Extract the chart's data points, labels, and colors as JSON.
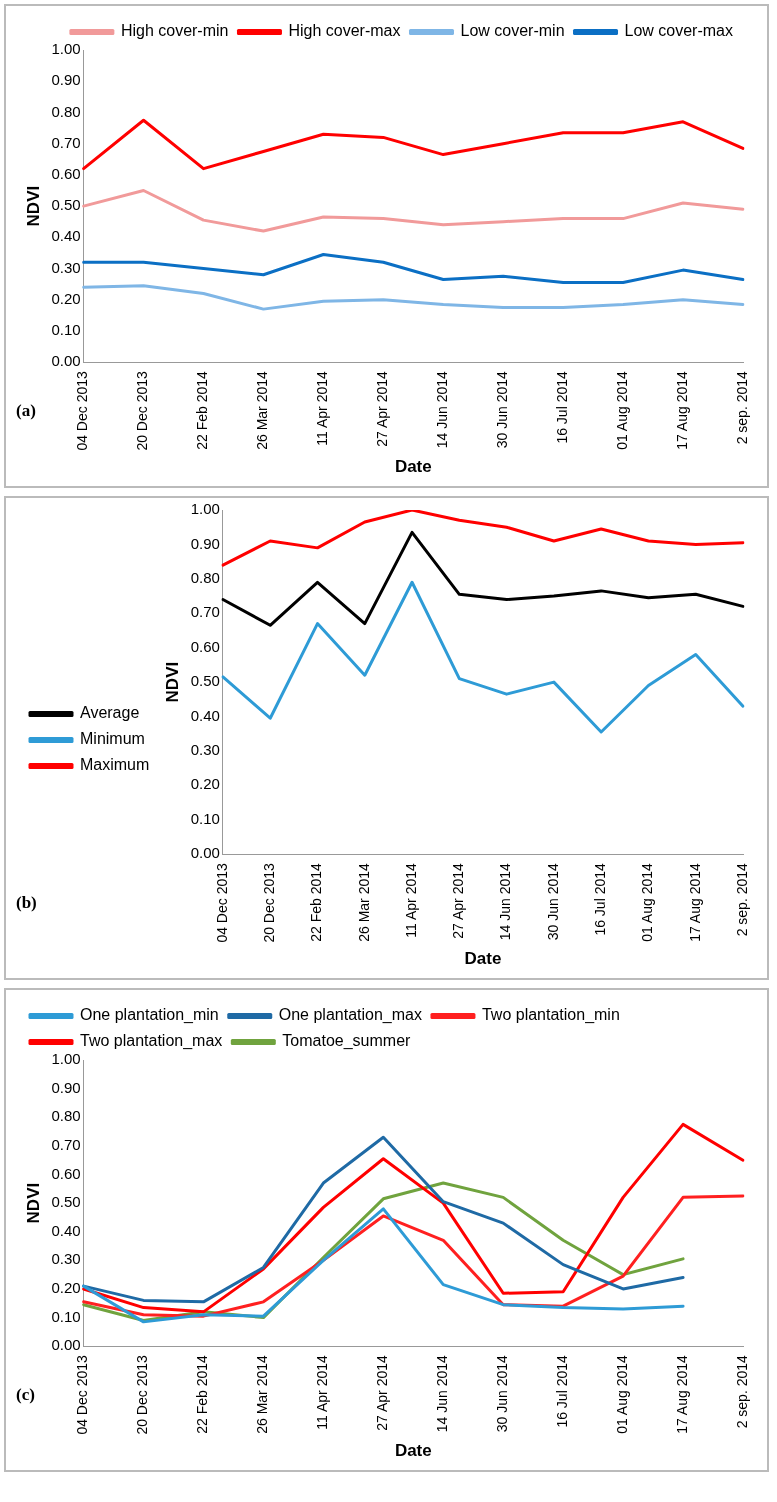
{
  "chart_data": [
    {
      "type": "line",
      "xlabel": "Date",
      "ylabel": "NDVI",
      "categories": [
        "04 Dec 2013",
        "20 Dec 2013",
        "22 Feb 2014",
        "26 Mar 2014",
        "11 Apr 2014",
        "27 Apr 2014",
        "14 Jun 2014",
        "30 Jun 2014",
        "16 Jul 2014",
        "01 Aug 2014",
        "17 Aug 2014",
        "2 sep. 2014"
      ],
      "ylim": [
        0,
        1
      ],
      "yticks": [
        {
          "value": 0,
          "label": "0.00"
        },
        {
          "value": 0.1,
          "label": "0.10"
        },
        {
          "value": 0.2,
          "label": "0.20"
        },
        {
          "value": 0.3,
          "label": "0.30"
        },
        {
          "value": 0.4,
          "label": "0.40"
        },
        {
          "value": 0.5,
          "label": "0.50"
        },
        {
          "value": 0.6,
          "label": "0.60"
        },
        {
          "value": 0.7,
          "label": "0.70"
        },
        {
          "value": 0.8,
          "label": "0.80"
        },
        {
          "value": 0.9,
          "label": "0.90"
        },
        {
          "value": 1,
          "label": "1.00"
        }
      ],
      "grid": false,
      "legend": "top right",
      "marker": "none",
      "annotations": [
        "(a)"
      ],
      "series": [
        {
          "name": "High cover-min",
          "color": "#f19a9a",
          "values": [
            0.5,
            0.55,
            0.455,
            0.42,
            0.465,
            0.46,
            0.44,
            0.45,
            0.46,
            0.46,
            0.51,
            0.49
          ]
        },
        {
          "name": "High cover-max",
          "color": "#ff0000",
          "values": [
            0.62,
            0.775,
            0.62,
            0.675,
            0.73,
            0.72,
            0.665,
            0.7,
            0.735,
            0.735,
            0.77,
            0.685
          ]
        },
        {
          "name": "Low cover-min",
          "color": "#7fb6e6",
          "values": [
            0.24,
            0.245,
            0.22,
            0.17,
            0.195,
            0.2,
            0.185,
            0.175,
            0.175,
            0.185,
            0.2,
            0.185
          ]
        },
        {
          "name": "Low cover-max",
          "color": "#0b6fc4",
          "values": [
            0.32,
            0.32,
            0.3,
            0.28,
            0.345,
            0.32,
            0.265,
            0.275,
            0.255,
            0.255,
            0.295,
            0.265
          ]
        }
      ]
    },
    {
      "type": "line",
      "xlabel": "Date",
      "ylabel": "NDVI",
      "categories": [
        "04 Dec 2013",
        "20 Dec 2013",
        "22 Feb 2014",
        "26 Mar 2014",
        "11 Apr 2014",
        "27 Apr 2014",
        "14 Jun 2014",
        "30 Jun 2014",
        "16 Jul 2014",
        "01 Aug 2014",
        "17 Aug 2014",
        "2 sep. 2014"
      ],
      "ylim": [
        0,
        1
      ],
      "yticks": [
        {
          "value": 0,
          "label": "0.00"
        },
        {
          "value": 0.1,
          "label": "0.10"
        },
        {
          "value": 0.2,
          "label": "0.20"
        },
        {
          "value": 0.3,
          "label": "0.30"
        },
        {
          "value": 0.4,
          "label": "0.40"
        },
        {
          "value": 0.5,
          "label": "0.50"
        },
        {
          "value": 0.6,
          "label": "0.60"
        },
        {
          "value": 0.7,
          "label": "0.70"
        },
        {
          "value": 0.8,
          "label": "0.80"
        },
        {
          "value": 0.9,
          "label": "0.90"
        },
        {
          "value": 1,
          "label": "1.00"
        }
      ],
      "grid": false,
      "legend": "left",
      "marker": "none",
      "annotations": [
        "(b)"
      ],
      "series": [
        {
          "name": "Average",
          "color": "#000000",
          "values": [
            0.74,
            0.665,
            0.79,
            0.67,
            0.935,
            0.755,
            0.74,
            0.75,
            0.765,
            0.745,
            0.755,
            0.72
          ]
        },
        {
          "name": "Minimum",
          "color": "#2e9bd6",
          "values": [
            0.515,
            0.395,
            0.67,
            0.52,
            0.79,
            0.51,
            0.465,
            0.5,
            0.355,
            0.49,
            0.58,
            0.43
          ]
        },
        {
          "name": "Maximum",
          "color": "#ff0000",
          "values": [
            0.84,
            0.91,
            0.89,
            0.965,
            1.0,
            0.97,
            0.95,
            0.91,
            0.945,
            0.91,
            0.9,
            0.905
          ]
        }
      ]
    },
    {
      "type": "line",
      "xlabel": "Date",
      "ylabel": "NDVI",
      "categories": [
        "04 Dec 2013",
        "20 Dec 2013",
        "22 Feb 2014",
        "26 Mar 2014",
        "11 Apr 2014",
        "27 Apr 2014",
        "14 Jun 2014",
        "30 Jun 2014",
        "16 Jul 2014",
        "01 Aug 2014",
        "17 Aug 2014",
        "2 sep. 2014"
      ],
      "ylim": [
        0,
        1
      ],
      "yticks": [
        {
          "value": 0,
          "label": "0.00"
        },
        {
          "value": 0.1,
          "label": "0.10"
        },
        {
          "value": 0.2,
          "label": "0.20"
        },
        {
          "value": 0.3,
          "label": "0.30"
        },
        {
          "value": 0.4,
          "label": "0.40"
        },
        {
          "value": 0.5,
          "label": "0.50"
        },
        {
          "value": 0.6,
          "label": "0.60"
        },
        {
          "value": 0.7,
          "label": "0.70"
        },
        {
          "value": 0.8,
          "label": "0.80"
        },
        {
          "value": 0.9,
          "label": "0.90"
        },
        {
          "value": 1,
          "label": "1.00"
        }
      ],
      "grid": false,
      "legend": "top left",
      "marker": "none",
      "annotations": [
        "(c)"
      ],
      "series": [
        {
          "name": "One plantation_min",
          "color": "#2e9bd6",
          "values": [
            0.21,
            0.085,
            0.11,
            0.105,
            0.3,
            0.48,
            0.215,
            0.145,
            0.135,
            0.13,
            0.14,
            null
          ]
        },
        {
          "name": "One plantation_max",
          "color": "#1f6aa5",
          "values": [
            0.21,
            0.16,
            0.155,
            0.275,
            0.57,
            0.73,
            0.505,
            0.43,
            0.285,
            0.2,
            0.24,
            null
          ]
        },
        {
          "name": "Two plantation_min",
          "color": "#ff2020",
          "values": [
            0.155,
            0.11,
            0.105,
            0.155,
            0.3,
            0.455,
            0.37,
            0.145,
            0.14,
            0.245,
            0.52,
            0.525
          ]
        },
        {
          "name": "Two plantation_max",
          "color": "#ff0000",
          "values": [
            0.2,
            0.135,
            0.12,
            0.27,
            0.485,
            0.655,
            0.5,
            0.185,
            0.19,
            0.52,
            0.775,
            0.65
          ]
        },
        {
          "name": "Tomatoe_summer",
          "color": "#70a33e",
          "values": [
            0.145,
            0.09,
            0.12,
            0.1,
            0.31,
            0.515,
            0.57,
            0.52,
            0.37,
            0.25,
            0.305,
            null
          ]
        }
      ]
    }
  ]
}
